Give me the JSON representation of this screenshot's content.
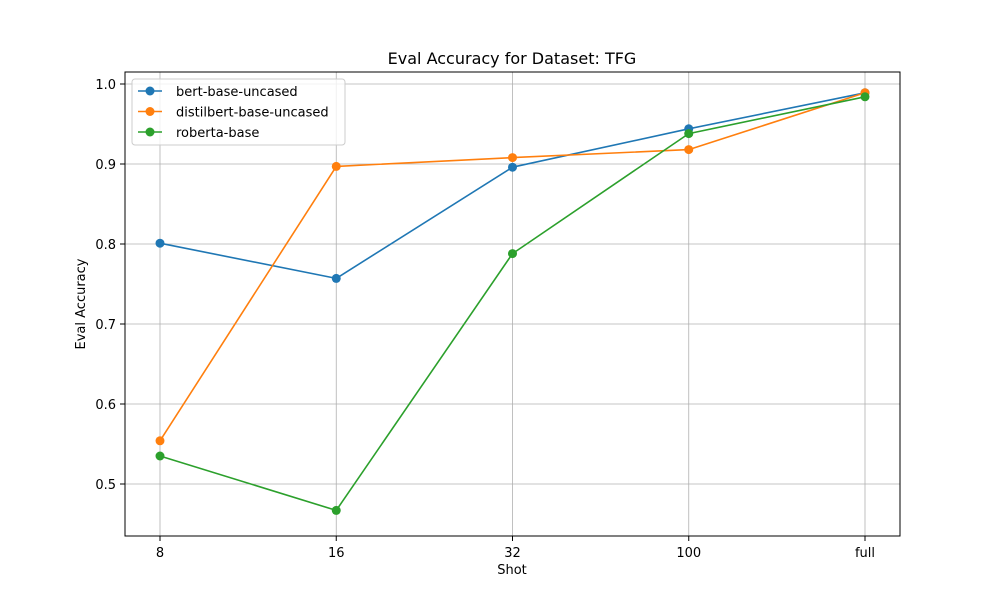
{
  "chart_data": {
    "type": "line",
    "title": "Eval Accuracy for Dataset: TFG",
    "xlabel": "Shot",
    "ylabel": "Eval Accuracy",
    "categories": [
      "8",
      "16",
      "32",
      "100",
      "full"
    ],
    "ylim": [
      0.435,
      1.015
    ],
    "yticks": [
      "0.5",
      "0.6",
      "0.7",
      "0.8",
      "0.9",
      "1.0"
    ],
    "grid": true,
    "legend_position": "top-left",
    "series": [
      {
        "name": "bert-base-uncased",
        "color": "#1f77b4",
        "values": [
          0.801,
          0.757,
          0.896,
          0.944,
          0.989
        ]
      },
      {
        "name": "distilbert-base-uncased",
        "color": "#ff7f0e",
        "values": [
          0.554,
          0.897,
          0.908,
          0.918,
          0.989
        ]
      },
      {
        "name": "roberta-base",
        "color": "#2ca02c",
        "values": [
          0.535,
          0.467,
          0.788,
          0.938,
          0.984
        ]
      }
    ]
  }
}
